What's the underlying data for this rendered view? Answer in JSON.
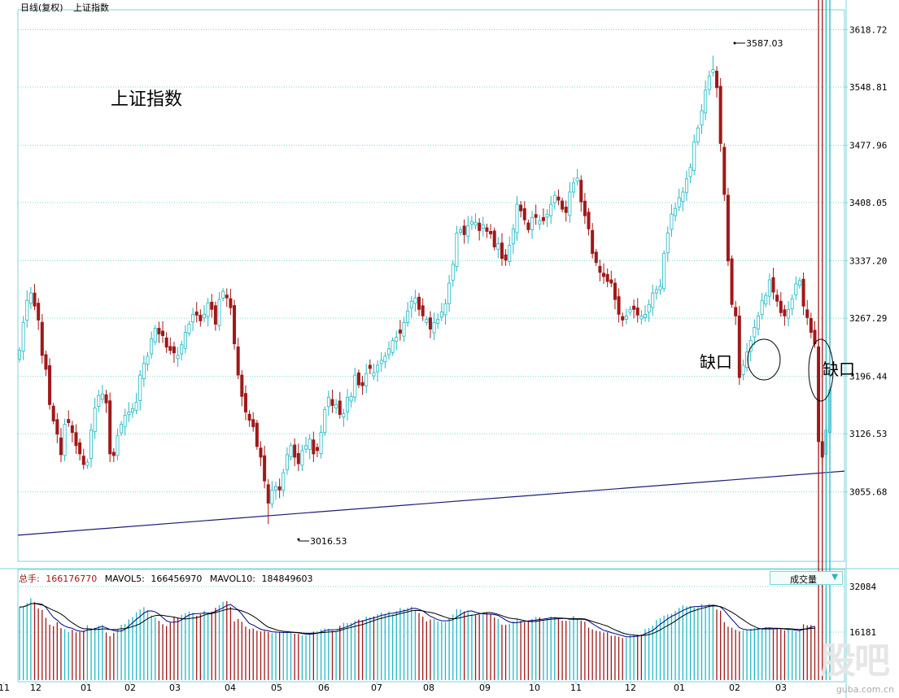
{
  "header": {
    "period_label": "日线(复权)",
    "index_name": "上证指数"
  },
  "annotations": {
    "title": "上证指数",
    "gap_label_1": "缺口",
    "gap_label_2": "缺口",
    "high_label": "3587.03",
    "low_label": "3016.53"
  },
  "volume_header": {
    "total_label": "总手:",
    "total_value": "166176770",
    "ma5_label": "MAVOL5:",
    "ma5_value": "166456970",
    "ma10_label": "MAVOL10:",
    "ma10_value": "184849603"
  },
  "volume_select": {
    "label": "成交量",
    "arrow": "▼"
  },
  "volume_axis": [
    "32084",
    "16181"
  ],
  "watermark": {
    "logo": "股吧",
    "site": "guba.com.cn"
  },
  "colors": {
    "up": "#22b8c4",
    "down": "#a01818",
    "grid": "#7fd6dc",
    "trend": "#1c1c78",
    "ma": "#000080"
  },
  "chart_data": {
    "type": "candlestick",
    "title": "上证指数",
    "ylim": [
      2987,
      3636
    ],
    "y_ticks": [
      "3618.72",
      "3548.81",
      "3477.96",
      "3408.05",
      "3337.20",
      "3267.29",
      "3196.44",
      "3126.53",
      "3055.68"
    ],
    "x_ticks": [
      "11",
      "12",
      "01",
      "02",
      "03",
      "04",
      "05",
      "06",
      "07",
      "08",
      "09",
      "10",
      "11",
      "12",
      "01",
      "02",
      "03"
    ],
    "high": 3587.03,
    "low": 3016.53,
    "series": [
      {
        "name": "close",
        "values": [
          3228,
          3262,
          3289,
          3298,
          3282,
          3265,
          3222,
          3205,
          3162,
          3142,
          3126,
          3101,
          3138,
          3140,
          3128,
          3112,
          3102,
          3089,
          3092,
          3131,
          3158,
          3173,
          3175,
          3164,
          3102,
          3100,
          3124,
          3138,
          3149,
          3153,
          3157,
          3165,
          3198,
          3212,
          3221,
          3242,
          3255,
          3248,
          3246,
          3232,
          3228,
          3225,
          3222,
          3235,
          3250,
          3260,
          3272,
          3271,
          3264,
          3272,
          3286,
          3278,
          3260,
          3290,
          3300,
          3292,
          3280,
          3236,
          3198,
          3172,
          3153,
          3143,
          3135,
          3111,
          3098,
          3069,
          3042,
          3058,
          3062,
          3058,
          3079,
          3101,
          3112,
          3098,
          3090,
          3106,
          3112,
          3120,
          3102,
          3106,
          3128,
          3156,
          3171,
          3161,
          3162,
          3150,
          3151,
          3171,
          3172,
          3198,
          3186,
          3185,
          3200,
          3206,
          3201,
          3210,
          3216,
          3221,
          3230,
          3240,
          3244,
          3249,
          3262,
          3276,
          3288,
          3292,
          3278,
          3270,
          3266,
          3254,
          3262,
          3266,
          3275,
          3285,
          3310,
          3333,
          3371,
          3375,
          3369,
          3380,
          3385,
          3384,
          3374,
          3381,
          3373,
          3370,
          3354,
          3358,
          3340,
          3338,
          3356,
          3376,
          3406,
          3398,
          3387,
          3375,
          3390,
          3390,
          3386,
          3386,
          3394,
          3406,
          3417,
          3411,
          3400,
          3396,
          3421,
          3432,
          3438,
          3409,
          3392,
          3376,
          3346,
          3335,
          3323,
          3318,
          3312,
          3310,
          3290,
          3272,
          3265,
          3270,
          3278,
          3278,
          3271,
          3270,
          3272,
          3284,
          3298,
          3302,
          3306,
          3346,
          3371,
          3394,
          3401,
          3414,
          3421,
          3437,
          3451,
          3482,
          3499,
          3520,
          3545,
          3562,
          3570,
          3548,
          3480,
          3418,
          3337,
          3284,
          3270,
          3195,
          3210,
          3226,
          3240,
          3256,
          3270,
          3289,
          3295,
          3314,
          3299,
          3288,
          3274,
          3270,
          3278,
          3291,
          3309,
          3313,
          3282,
          3268,
          3250,
          3236,
          3117,
          3098,
          3131,
          3180
        ]
      },
      {
        "name": "volume",
        "values": [
          24890,
          25160,
          26360,
          28010,
          26650,
          24450,
          23920,
          21150,
          18790,
          18280,
          19610,
          17560,
          17220,
          16140,
          16980,
          16070,
          16230,
          16640,
          18630,
          17490,
          17750,
          18430,
          18650,
          16030,
          14790,
          15880,
          17250,
          18740,
          19080,
          20640,
          21490,
          23110,
          24050,
          24880,
          23910,
          21990,
          21350,
          20100,
          18920,
          18280,
          19410,
          21460,
          21010,
          22230,
          22850,
          23300,
          22970,
          21890,
          22430,
          23690,
          22950,
          23350,
          24650,
          25620,
          26750,
          27010,
          24980,
          19930,
          20740,
          19790,
          18110,
          17240,
          17430,
          16660,
          16400,
          16560,
          16190,
          15730,
          16120,
          16080,
          16210,
          16200,
          16070,
          15630,
          15530,
          15050,
          15150,
          15900,
          16360,
          16460,
          17180,
          17460,
          17350,
          16640,
          16600,
          18380,
          19430,
          19330,
          19400,
          20210,
          20590,
          20390,
          21590,
          21360,
          21710,
          22430,
          23040,
          22650,
          23410,
          22360,
          23520,
          24640,
          24170,
          24660,
          25110,
          23720,
          22840,
          21560,
          19940,
          20550,
          20720,
          19850,
          19750,
          19640,
          21150,
          22290,
          24210,
          24060,
          23380,
          23630,
          22480,
          22060,
          22190,
          22670,
          22940,
          22400,
          21300,
          20770,
          18750,
          18700,
          19090,
          19980,
          20820,
          20080,
          19580,
          19840,
          20760,
          21450,
          21310,
          20330,
          20940,
          21670,
          21550,
          21120,
          20170,
          20140,
          20160,
          21820,
          20870,
          20180,
          19820,
          17740,
          17130,
          16660,
          16420,
          16030,
          16100,
          14910,
          14910,
          14600,
          14100,
          14220,
          14960,
          15200,
          15270,
          15350,
          17250,
          17570,
          18450,
          20420,
          21020,
          21930,
          22310,
          22610,
          23600,
          24680,
          25520,
          25140,
          25240,
          24780,
          24890,
          26010,
          25510,
          26060,
          25450,
          24050,
          23630,
          19680,
          18040,
          17710,
          17000,
          16420,
          16800,
          17090,
          17310,
          17610,
          17540,
          17470,
          17930,
          17580,
          17030,
          17560,
          17200,
          16780,
          17090,
          16770,
          16290,
          16670,
          18930,
          18540,
          18670,
          18200
        ]
      }
    ]
  }
}
